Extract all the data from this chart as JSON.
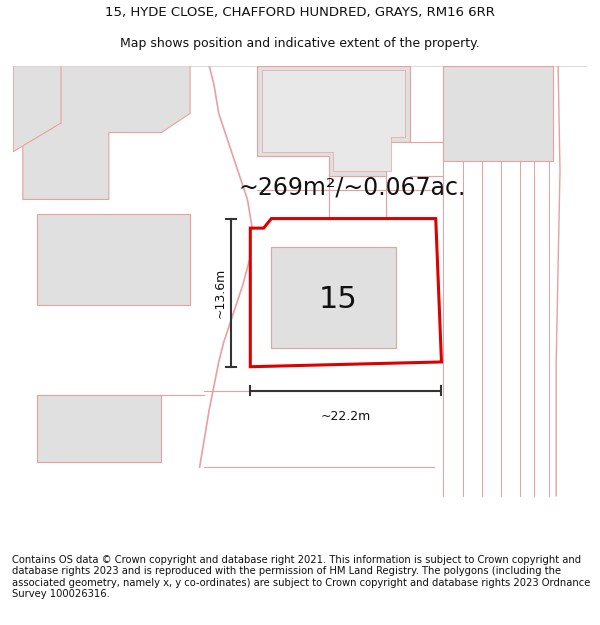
{
  "title_line1": "15, HYDE CLOSE, CHAFFORD HUNDRED, GRAYS, RM16 6RR",
  "title_line2": "Map shows position and indicative extent of the property.",
  "area_label": "~269m²/~0.067ac.",
  "number_label": "15",
  "dim_height": "~13.6m",
  "dim_width": "~22.2m",
  "footer_text": "Contains OS data © Crown copyright and database right 2021. This information is subject to Crown copyright and database rights 2023 and is reproduced with the permission of HM Land Registry. The polygons (including the associated geometry, namely x, y co-ordinates) are subject to Crown copyright and database rights 2023 Ordnance Survey 100026316.",
  "bg_color": "#ffffff",
  "plot_outline_color": "#dd0000",
  "other_outline_color": "#e8a0a0",
  "building_fill": "#e0e0e0",
  "plot_fill": "#ffffff",
  "title_fontsize": 9.5,
  "subtitle_fontsize": 9,
  "footer_fontsize": 7.2,
  "area_fontsize": 17,
  "num_fontsize": 22,
  "dim_fontsize": 9
}
